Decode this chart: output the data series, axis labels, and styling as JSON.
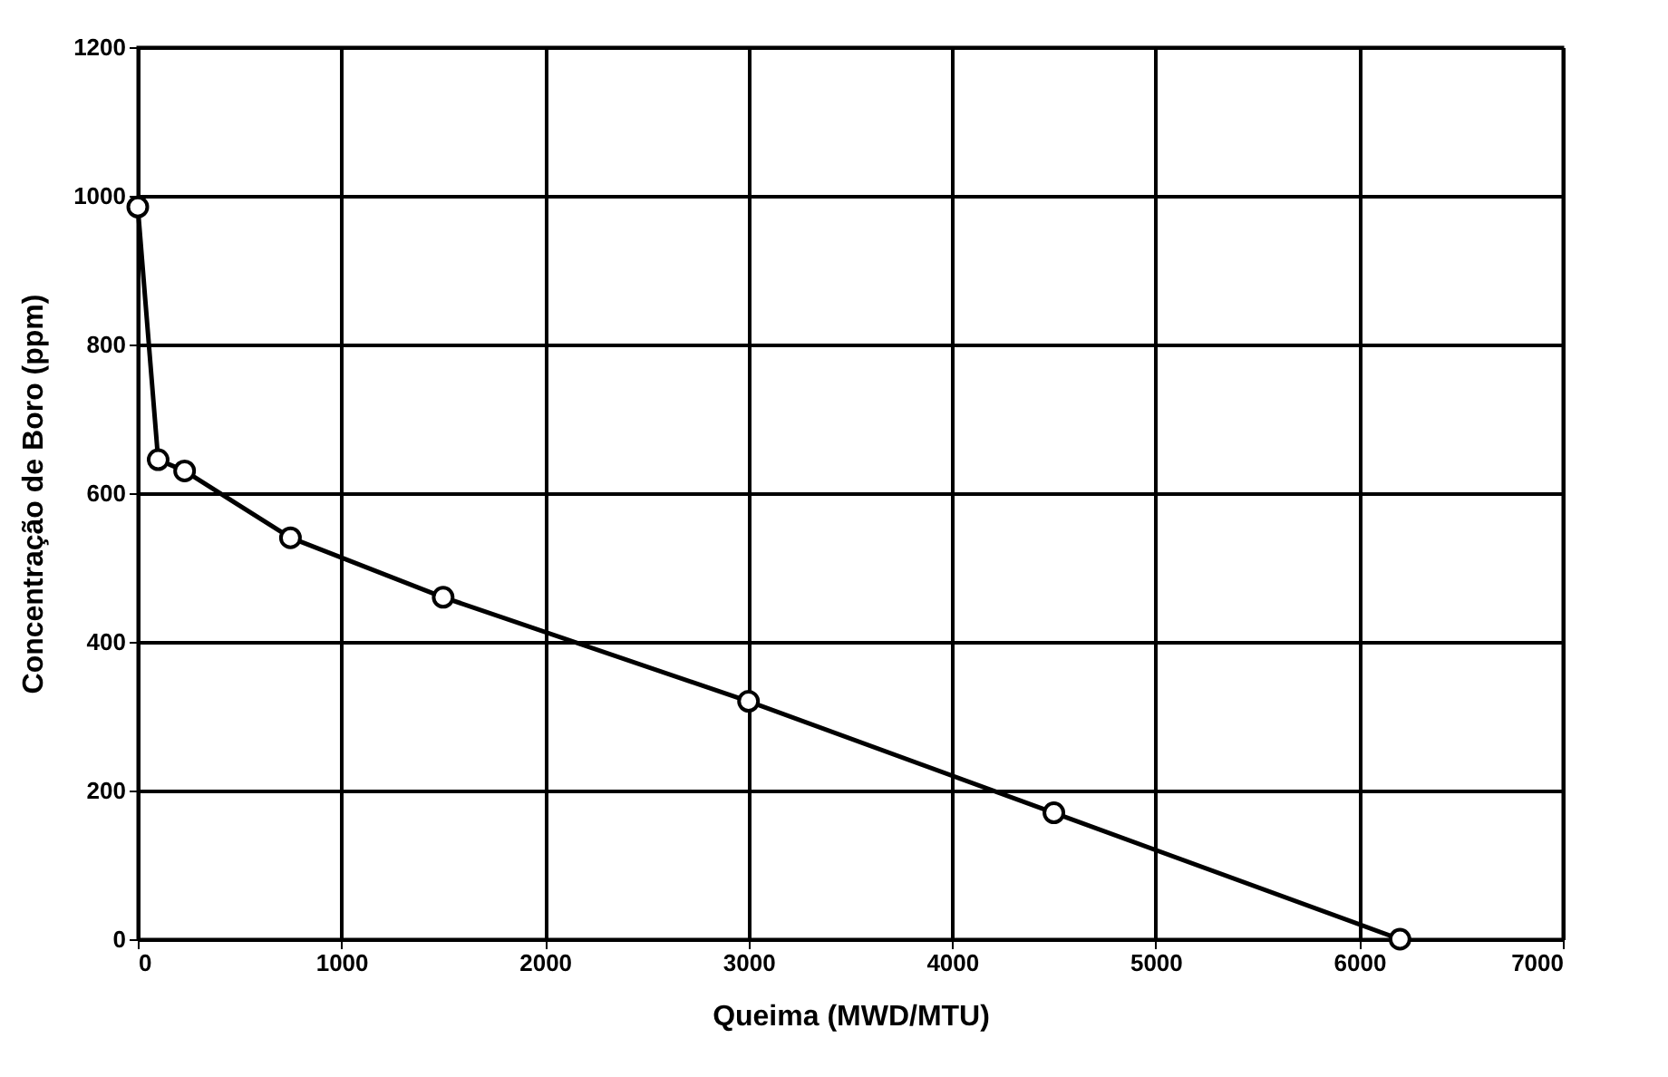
{
  "chart_data": {
    "type": "line",
    "xlabel": "Queima (MWD/MTU)",
    "ylabel": "Concentração de Boro (ppm)",
    "x": [
      0,
      100,
      230,
      750,
      1500,
      3000,
      4500,
      6200
    ],
    "series": [
      {
        "color": "#000000",
        "values": [
          985,
          645,
          630,
          540,
          460,
          320,
          170,
          0
        ]
      }
    ],
    "xlim": [
      0,
      7000
    ],
    "xticks": [
      0,
      1000,
      2000,
      3000,
      4000,
      5000,
      6000,
      7000
    ],
    "ylim": [
      0,
      1200
    ],
    "yticks": [
      0,
      200,
      400,
      600,
      800,
      1000,
      1200
    ],
    "grid": true,
    "marker": "circle",
    "line_style": "solid"
  }
}
